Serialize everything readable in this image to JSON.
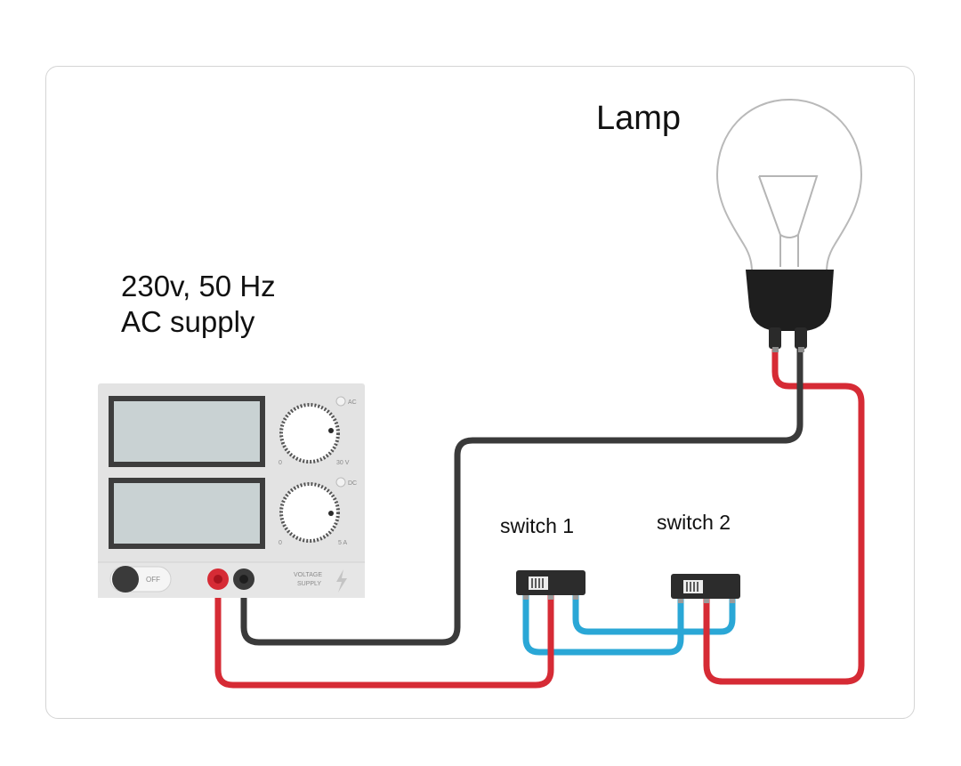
{
  "labels": {
    "lamp": "Lamp",
    "supply_line1": "230v, 50 Hz",
    "supply_line2": "AC supply",
    "switch1": "switch 1",
    "switch2": "switch 2"
  },
  "supply_device": {
    "power_toggle": "OFF",
    "ac_indicator": "AC",
    "dc_indicator": "DC",
    "knob1_min": "0",
    "knob1_max": "30 V",
    "knob2_min": "0",
    "knob2_max": "5 A",
    "brand_line1": "VOLTAGE",
    "brand_line2": "SUPPLY"
  },
  "colors": {
    "live_wire": "#d62b35",
    "neutral_wire": "#3a3a3a",
    "link_wire": "#2aa7d6",
    "device_body": "#e3e3e3",
    "screen": "#c9d2d3"
  }
}
